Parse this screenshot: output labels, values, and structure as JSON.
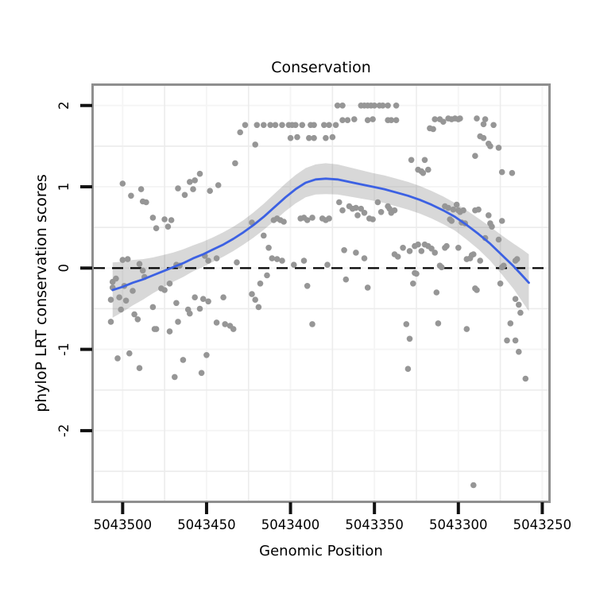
{
  "title": "Conservation",
  "x_axis": {
    "title": "Genomic Position",
    "tick_labels": [
      "5043500",
      "5043450",
      "5043400",
      "5043350",
      "5043300",
      "5043250"
    ],
    "tick_values": [
      5043500,
      5043450,
      5043400,
      5043350,
      5043300,
      5043250
    ],
    "reversed": true,
    "lim": [
      5043517.2,
      5043246.4
    ]
  },
  "y_axis": {
    "title": "phyloP LRT conservation scores",
    "tick_labels": [
      "2",
      "1",
      "0",
      "-1",
      "-2"
    ],
    "tick_values": [
      2,
      1,
      0,
      -1,
      -2
    ],
    "lim": [
      -2.861,
      2.242
    ]
  },
  "colors": {
    "point": "#969696",
    "smooth_line": "#3c61e3",
    "ribbon": "rgba(110,110,110,0.27)",
    "panel_border": "#8f8f8f",
    "tick": "#111111",
    "grid_minor": "#ececec",
    "grid_major": "#f5f5f5",
    "hline": "#000000",
    "background": "#ffffff"
  },
  "chart_data": {
    "type": "scatter",
    "title": "Conservation",
    "xlabel": "Genomic Position",
    "ylabel": "phyloP LRT conservation scores",
    "xlim": [
      5043517.2,
      5043246.4
    ],
    "ylim": [
      -2.861,
      2.242
    ],
    "grid": "minor-visible",
    "hline": {
      "y": 0,
      "style": "dashed",
      "color": "#000000"
    },
    "points": [
      [
        5043507,
        -0.66
      ],
      [
        5043507,
        -0.39
      ],
      [
        5043506,
        -0.24
      ],
      [
        5043506,
        -0.17
      ],
      [
        5043504,
        -0.13
      ],
      [
        5043503,
        -1.11
      ],
      [
        5043502,
        -0.36
      ],
      [
        5043501,
        -0.51
      ],
      [
        5043500,
        1.04
      ],
      [
        5043500,
        0.1
      ],
      [
        5043499,
        -0.22
      ],
      [
        5043498,
        -0.4
      ],
      [
        5043497,
        0.11
      ],
      [
        5043496,
        -1.05
      ],
      [
        5043495,
        0.89
      ],
      [
        5043494,
        -0.28
      ],
      [
        5043493,
        -0.57
      ],
      [
        5043491,
        -0.63
      ],
      [
        5043490,
        0.05
      ],
      [
        5043490,
        -1.23
      ],
      [
        5043489,
        0.97
      ],
      [
        5043488,
        0.82
      ],
      [
        5043488,
        -0.03
      ],
      [
        5043487,
        -0.11
      ],
      [
        5043486,
        0.81
      ],
      [
        5043482,
        0.62
      ],
      [
        5043482,
        -0.48
      ],
      [
        5043481,
        -0.75
      ],
      [
        5043480,
        0.49
      ],
      [
        5043480,
        -0.75
      ],
      [
        5043477,
        -0.25
      ],
      [
        5043475,
        0.6
      ],
      [
        5043475,
        -0.27
      ],
      [
        5043473,
        0.51
      ],
      [
        5043472,
        -0.78
      ],
      [
        5043472,
        -0.19
      ],
      [
        5043471,
        0.59
      ],
      [
        5043469,
        -1.34
      ],
      [
        5043468,
        0.04
      ],
      [
        5043468,
        -0.43
      ],
      [
        5043467,
        0.98
      ],
      [
        5043467,
        -0.66
      ],
      [
        5043466,
        0.03
      ],
      [
        5043464,
        -1.13
      ],
      [
        5043463,
        0.9
      ],
      [
        5043461,
        -0.51
      ],
      [
        5043460,
        1.06
      ],
      [
        5043460,
        -0.56
      ],
      [
        5043458,
        0.97
      ],
      [
        5043457,
        1.08
      ],
      [
        5043457,
        -0.36
      ],
      [
        5043454,
        1.16
      ],
      [
        5043454,
        -0.5
      ],
      [
        5043453,
        -1.29
      ],
      [
        5043452,
        -0.38
      ],
      [
        5043451,
        0.15
      ],
      [
        5043450,
        -1.07
      ],
      [
        5043449,
        0.09
      ],
      [
        5043449,
        -0.41
      ],
      [
        5043448,
        0.95
      ],
      [
        5043444,
        0.12
      ],
      [
        5043444,
        -0.67
      ],
      [
        5043443,
        1.02
      ],
      [
        5043440,
        -0.36
      ],
      [
        5043439,
        -0.69
      ],
      [
        5043436,
        -0.71
      ],
      [
        5043434,
        -0.75
      ],
      [
        5043433,
        1.29
      ],
      [
        5043432,
        0.07
      ],
      [
        5043430,
        1.67
      ],
      [
        5043427,
        1.76
      ],
      [
        5043420,
        1.76
      ],
      [
        5043416,
        1.76
      ],
      [
        5043412,
        1.76
      ],
      [
        5043409,
        1.76
      ],
      [
        5043405,
        1.76
      ],
      [
        5043401,
        1.76
      ],
      [
        5043399,
        1.76
      ],
      [
        5043397,
        1.76
      ],
      [
        5043393,
        1.76
      ],
      [
        5043388,
        1.76
      ],
      [
        5043386,
        1.76
      ],
      [
        5043380,
        1.76
      ],
      [
        5043377,
        1.76
      ],
      [
        5043373,
        1.76
      ],
      [
        5043400,
        1.6
      ],
      [
        5043396,
        1.61
      ],
      [
        5043389,
        1.6
      ],
      [
        5043386,
        1.6
      ],
      [
        5043379,
        1.6
      ],
      [
        5043375,
        1.61
      ],
      [
        5043421,
        1.52
      ],
      [
        5043369,
        1.82
      ],
      [
        5043366,
        1.82
      ],
      [
        5043362,
        1.83
      ],
      [
        5043354,
        1.82
      ],
      [
        5043351,
        1.83
      ],
      [
        5043342,
        1.82
      ],
      [
        5043340,
        1.82
      ],
      [
        5043337,
        1.82
      ],
      [
        5043372,
        2.0
      ],
      [
        5043369,
        2.0
      ],
      [
        5043358,
        2.0
      ],
      [
        5043356,
        2.0
      ],
      [
        5043354,
        2.0
      ],
      [
        5043352,
        2.0
      ],
      [
        5043350,
        2.0
      ],
      [
        5043347,
        2.0
      ],
      [
        5043345,
        2.0
      ],
      [
        5043342,
        2.0
      ],
      [
        5043337,
        2.0
      ],
      [
        5043423,
        0.56
      ],
      [
        5043410,
        0.59
      ],
      [
        5043408,
        0.61
      ],
      [
        5043406,
        0.59
      ],
      [
        5043404,
        0.57
      ],
      [
        5043394,
        0.61
      ],
      [
        5043392,
        0.62
      ],
      [
        5043390,
        0.59
      ],
      [
        5043387,
        0.62
      ],
      [
        5043381,
        0.61
      ],
      [
        5043379,
        0.59
      ],
      [
        5043377,
        0.61
      ],
      [
        5043371,
        0.81
      ],
      [
        5043369,
        0.71
      ],
      [
        5043365,
        0.76
      ],
      [
        5043363,
        0.73
      ],
      [
        5043361,
        0.74
      ],
      [
        5043360,
        0.65
      ],
      [
        5043358,
        0.73
      ],
      [
        5043356,
        0.68
      ],
      [
        5043353,
        0.61
      ],
      [
        5043351,
        0.6
      ],
      [
        5043348,
        0.81
      ],
      [
        5043346,
        0.69
      ],
      [
        5043342,
        0.76
      ],
      [
        5043341,
        0.73
      ],
      [
        5043340,
        0.68
      ],
      [
        5043338,
        0.71
      ],
      [
        5043416,
        0.4
      ],
      [
        5043413,
        0.25
      ],
      [
        5043411,
        0.12
      ],
      [
        5043408,
        0.11
      ],
      [
        5043405,
        0.09
      ],
      [
        5043398,
        0.04
      ],
      [
        5043392,
        0.09
      ],
      [
        5043378,
        0.04
      ],
      [
        5043368,
        0.22
      ],
      [
        5043361,
        0.19
      ],
      [
        5043356,
        0.12
      ],
      [
        5043338,
        0.17
      ],
      [
        5043336,
        0.14
      ],
      [
        5043423,
        -0.32
      ],
      [
        5043421,
        -0.39
      ],
      [
        5043419,
        -0.48
      ],
      [
        5043418,
        -0.19
      ],
      [
        5043414,
        -0.09
      ],
      [
        5043390,
        -0.22
      ],
      [
        5043387,
        -0.69
      ],
      [
        5043367,
        -0.14
      ],
      [
        5043354,
        -0.24
      ],
      [
        5043328,
        1.33
      ],
      [
        5043320,
        1.33
      ],
      [
        5043324,
        1.21
      ],
      [
        5043322,
        1.19
      ],
      [
        5043321,
        1.17
      ],
      [
        5043318,
        1.21
      ],
      [
        5043317,
        1.72
      ],
      [
        5043315,
        1.71
      ],
      [
        5043314,
        1.83
      ],
      [
        5043311,
        1.83
      ],
      [
        5043309,
        1.8
      ],
      [
        5043306,
        1.84
      ],
      [
        5043304,
        1.83
      ],
      [
        5043302,
        1.84
      ],
      [
        5043300,
        1.83
      ],
      [
        5043299,
        1.84
      ],
      [
        5043289,
        1.84
      ],
      [
        5043285,
        1.77
      ],
      [
        5043284,
        1.83
      ],
      [
        5043279,
        1.76
      ],
      [
        5043290,
        1.38
      ],
      [
        5043287,
        1.62
      ],
      [
        5043285,
        1.6
      ],
      [
        5043282,
        1.53
      ],
      [
        5043281,
        1.5
      ],
      [
        5043276,
        1.48
      ],
      [
        5043274,
        1.18
      ],
      [
        5043268,
        1.17
      ],
      [
        5043308,
        0.76
      ],
      [
        5043306,
        0.74
      ],
      [
        5043303,
        0.72
      ],
      [
        5043301,
        0.78
      ],
      [
        5043300,
        0.71
      ],
      [
        5043299,
        0.69
      ],
      [
        5043297,
        0.71
      ],
      [
        5043305,
        0.6
      ],
      [
        5043304,
        0.58
      ],
      [
        5043298,
        0.56
      ],
      [
        5043296,
        0.55
      ],
      [
        5043290,
        0.71
      ],
      [
        5043288,
        0.72
      ],
      [
        5043282,
        0.65
      ],
      [
        5043281,
        0.55
      ],
      [
        5043280,
        0.51
      ],
      [
        5043274,
        0.58
      ],
      [
        5043284,
        0.37
      ],
      [
        5043276,
        0.35
      ],
      [
        5043333,
        0.25
      ],
      [
        5043329,
        0.21
      ],
      [
        5043326,
        0.27
      ],
      [
        5043324,
        0.29
      ],
      [
        5043322,
        0.21
      ],
      [
        5043320,
        0.29
      ],
      [
        5043318,
        0.27
      ],
      [
        5043316,
        0.24
      ],
      [
        5043314,
        0.19
      ],
      [
        5043308,
        0.25
      ],
      [
        5043307,
        0.27
      ],
      [
        5043300,
        0.25
      ],
      [
        5043295,
        0.11
      ],
      [
        5043293,
        0.12
      ],
      [
        5043292,
        0.16
      ],
      [
        5043291,
        0.17
      ],
      [
        5043287,
        0.09
      ],
      [
        5043311,
        0.03
      ],
      [
        5043310,
        0.01
      ],
      [
        5043274,
        0.01
      ],
      [
        5043273,
        0.03
      ],
      [
        5043266,
        0.09
      ],
      [
        5043265,
        0.11
      ],
      [
        5043327,
        -0.19
      ],
      [
        5043326,
        -0.06
      ],
      [
        5043325,
        -0.07
      ],
      [
        5043313,
        -0.3
      ],
      [
        5043290,
        -0.25
      ],
      [
        5043289,
        -0.27
      ],
      [
        5043275,
        -0.19
      ],
      [
        5043331,
        -0.69
      ],
      [
        5043329,
        -0.87
      ],
      [
        5043330,
        -1.24
      ],
      [
        5043312,
        -0.68
      ],
      [
        5043295,
        -0.75
      ],
      [
        5043291,
        -2.67
      ],
      [
        5043271,
        -0.89
      ],
      [
        5043269,
        -0.68
      ],
      [
        5043266,
        -0.89
      ],
      [
        5043266,
        -0.38
      ],
      [
        5043264,
        -0.45
      ],
      [
        5043264,
        -1.03
      ],
      [
        5043263,
        -0.55
      ],
      [
        5043260,
        -1.36
      ]
    ],
    "smooth": {
      "name": "loess smooth with confidence band",
      "x": [
        5043506,
        5043500,
        5043494,
        5043488,
        5043482,
        5043476,
        5043470,
        5043464,
        5043458,
        5043452,
        5043446,
        5043440,
        5043434,
        5043428,
        5043422,
        5043416,
        5043410,
        5043403,
        5043397,
        5043391,
        5043385,
        5043379,
        5043372,
        5043365,
        5043358,
        5043351,
        5043344,
        5043337,
        5043330,
        5043323,
        5043316,
        5043309,
        5043302,
        5043295,
        5043288,
        5043281,
        5043274,
        5043267,
        5043262,
        5043258
      ],
      "y": [
        -0.27,
        -0.23,
        -0.18,
        -0.14,
        -0.09,
        -0.04,
        0.01,
        0.06,
        0.12,
        0.17,
        0.23,
        0.29,
        0.36,
        0.44,
        0.53,
        0.63,
        0.74,
        0.87,
        0.97,
        1.05,
        1.09,
        1.1,
        1.09,
        1.06,
        1.03,
        1.0,
        0.97,
        0.93,
        0.89,
        0.84,
        0.78,
        0.71,
        0.63,
        0.53,
        0.42,
        0.3,
        0.16,
        0.02,
        -0.09,
        -0.18
      ],
      "ci_halfwidth": [
        0.34,
        0.31,
        0.28,
        0.25,
        0.22,
        0.2,
        0.18,
        0.17,
        0.16,
        0.155,
        0.15,
        0.15,
        0.15,
        0.15,
        0.155,
        0.16,
        0.165,
        0.17,
        0.175,
        0.18,
        0.185,
        0.19,
        0.185,
        0.18,
        0.175,
        0.17,
        0.17,
        0.17,
        0.17,
        0.17,
        0.17,
        0.17,
        0.17,
        0.18,
        0.19,
        0.21,
        0.24,
        0.28,
        0.32,
        0.35
      ]
    }
  }
}
